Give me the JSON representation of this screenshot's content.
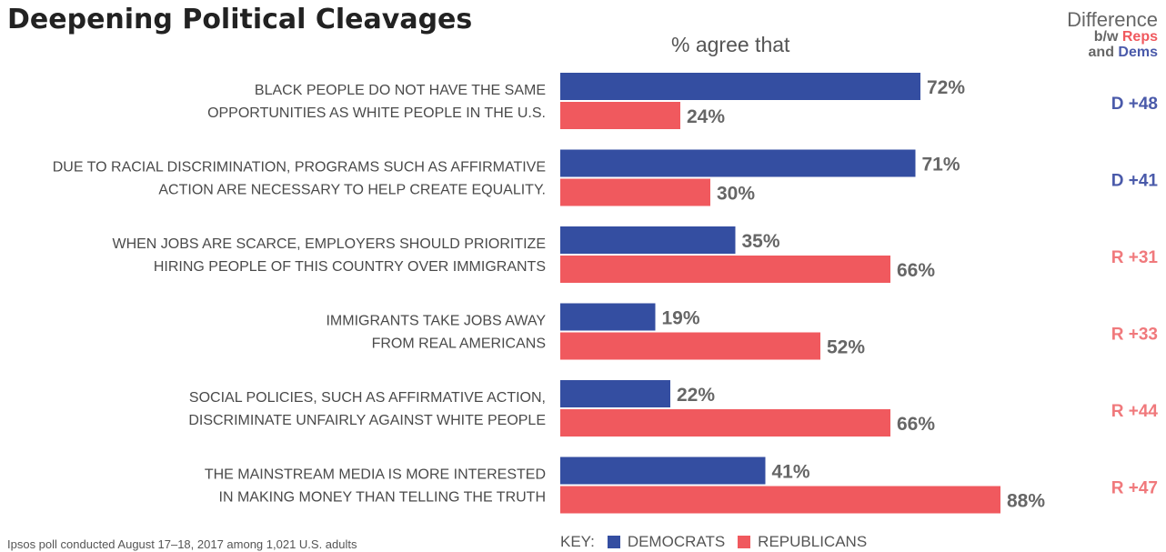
{
  "title": "Deepening Political Cleavages",
  "subtitle": "% agree that",
  "difference_header": {
    "line1": "Difference",
    "bw": "b/w",
    "reps": "Reps",
    "and": "and",
    "dems": "Dems"
  },
  "source": "Ipsos poll conducted August 17–18, 2017 among 1,021 U.S. adults",
  "legend": {
    "key_label": "KEY:",
    "democrats": "DEMOCRATS",
    "republicans": "REPUBLICANS"
  },
  "colors": {
    "democrats": "#344ea1",
    "republicans": "#f0595e",
    "value_text": "#666666"
  },
  "chart_data": {
    "type": "bar",
    "orientation": "horizontal",
    "title": "Deepening Political Cleavages",
    "subtitle": "% agree that",
    "xlim": [
      0,
      100
    ],
    "value_suffix": "%",
    "categories": [
      [
        "BLACK PEOPLE DO NOT HAVE THE SAME",
        "OPPORTUNITIES AS WHITE PEOPLE IN THE U.S."
      ],
      [
        "DUE TO RACIAL DISCRIMINATION, PROGRAMS SUCH AS AFFIRMATIVE",
        "ACTION ARE NECESSARY TO HELP CREATE EQUALITY."
      ],
      [
        "WHEN JOBS ARE SCARCE, EMPLOYERS SHOULD PRIORITIZE",
        "HIRING PEOPLE OF THIS COUNTRY OVER IMMIGRANTS"
      ],
      [
        "IMMIGRANTS TAKE JOBS AWAY",
        "FROM REAL AMERICANS"
      ],
      [
        "SOCIAL POLICIES, SUCH AS AFFIRMATIVE ACTION,",
        "DISCRIMINATE UNFAIRLY AGAINST WHITE PEOPLE"
      ],
      [
        "THE MAINSTREAM MEDIA IS MORE INTERESTED",
        "IN MAKING MONEY THAN TELLING THE TRUTH"
      ]
    ],
    "series": [
      {
        "name": "DEMOCRATS",
        "values": [
          72,
          71,
          35,
          19,
          22,
          41
        ]
      },
      {
        "name": "REPUBLICANS",
        "values": [
          24,
          30,
          66,
          52,
          66,
          88
        ]
      }
    ],
    "differences": [
      {
        "party": "D",
        "label": "D +48"
      },
      {
        "party": "D",
        "label": "D +41"
      },
      {
        "party": "R",
        "label": "R +31"
      },
      {
        "party": "R",
        "label": "R +33"
      },
      {
        "party": "R",
        "label": "R +44"
      },
      {
        "party": "R",
        "label": "R +47"
      }
    ],
    "legend_position": "bottom"
  }
}
